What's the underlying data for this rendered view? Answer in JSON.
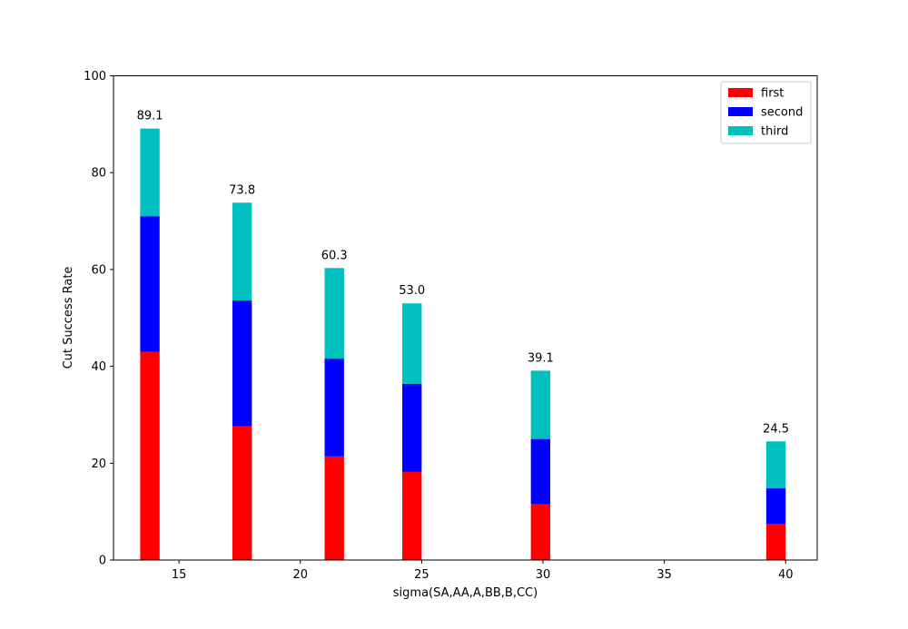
{
  "chart_data": {
    "type": "bar",
    "stacked": true,
    "title": "",
    "xlabel": "sigma(SA,AA,A,BB,B,CC)",
    "ylabel": "Cut Success Rate",
    "xlim": [
      12.3,
      41.3
    ],
    "ylim": [
      0,
      100
    ],
    "xticks": [
      15,
      20,
      25,
      30,
      35,
      40
    ],
    "yticks": [
      0,
      20,
      40,
      60,
      80,
      100
    ],
    "grid": false,
    "legend_position": "top-right",
    "bar_width": 0.8,
    "x": [
      13.8,
      17.6,
      21.4,
      24.6,
      29.9,
      39.6
    ],
    "series": [
      {
        "name": "first",
        "color": "#ff0000",
        "values": [
          43.0,
          27.6,
          21.4,
          18.2,
          11.5,
          7.5
        ]
      },
      {
        "name": "second",
        "color": "#0000ff",
        "values": [
          28.0,
          26.0,
          20.2,
          18.2,
          13.5,
          7.3
        ]
      },
      {
        "name": "third",
        "color": "#00bfbf",
        "values": [
          18.1,
          20.2,
          18.7,
          16.6,
          14.1,
          9.7
        ]
      }
    ],
    "totals": [
      "89.1",
      "73.8",
      "60.3",
      "53.0",
      "39.1",
      "24.5"
    ]
  }
}
